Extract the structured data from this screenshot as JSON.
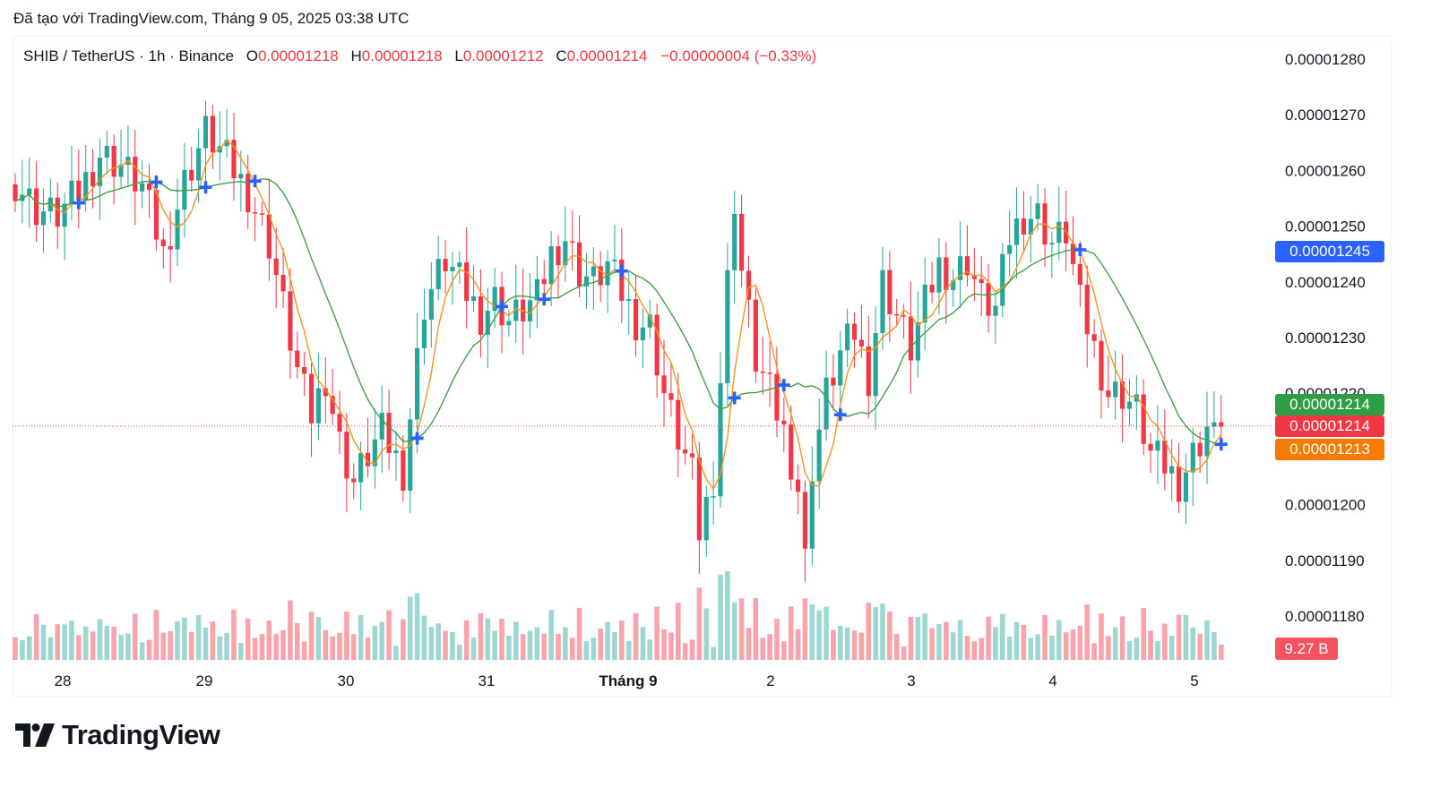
{
  "header": {
    "created_with": "Đã tạo với TradingView.com, Tháng 9 05, 2025 03:38 UTC"
  },
  "legend": {
    "symbol": "SHIB / TetherUS · 1h · Binance",
    "open_label": "O",
    "open": "0.00001218",
    "high_label": "H",
    "high": "0.00001218",
    "low_label": "L",
    "low": "0.00001212",
    "close_label": "C",
    "close": "0.00001214",
    "change": "−0.00000004 (−0.33%)"
  },
  "tags": {
    "ma_blue": "0.00001245",
    "ma_green": "0.00001214",
    "last_price": "0.00001214",
    "ma_orange": "0.00001213",
    "volume": "9.27 B"
  },
  "brand": {
    "name": "TradingView"
  },
  "colors": {
    "up": "#26a69a",
    "down": "#f23645",
    "ma_fast": "#f7931a",
    "ma_slow": "#43a047",
    "marker": "#2962ff",
    "last_price_line": "#f23645"
  },
  "icons": {
    "brand_logo": "tradingview-logo-icon",
    "signal_marker": "plus-icon"
  },
  "chart_data": {
    "type": "candlestick",
    "symbol": "SHIB / TetherUS",
    "interval": "1h",
    "exchange": "Binance",
    "y_ticks": [
      "0.00001280",
      "0.00001270",
      "0.00001260",
      "0.00001250",
      "0.00001240",
      "0.00001230",
      "0.00001220",
      "0.00001210",
      "0.00001200",
      "0.00001190",
      "0.00001180"
    ],
    "x_ticks": [
      "28",
      "29",
      "30",
      "31",
      "Tháng 9",
      "2",
      "3",
      "4",
      "5"
    ],
    "grid": false,
    "last_close": 1.214e-05,
    "anchors_close": [
      [
        0,
        12.58
      ],
      [
        3,
        12.53
      ],
      [
        6,
        12.52
      ],
      [
        9,
        12.56
      ],
      [
        12,
        12.63
      ],
      [
        15,
        12.61
      ],
      [
        18,
        12.57
      ],
      [
        21,
        12.45
      ],
      [
        24,
        12.58
      ],
      [
        27,
        12.67
      ],
      [
        30,
        12.62
      ],
      [
        33,
        12.56
      ],
      [
        36,
        12.47
      ],
      [
        40,
        12.24
      ],
      [
        42,
        12.16
      ],
      [
        44,
        12.23
      ],
      [
        46,
        12.11
      ],
      [
        48,
        12.04
      ],
      [
        50,
        12.09
      ],
      [
        52,
        12.13
      ],
      [
        55,
        12.06
      ],
      [
        58,
        12.36
      ],
      [
        61,
        12.44
      ],
      [
        64,
        12.38
      ],
      [
        66,
        12.34
      ],
      [
        68,
        12.37
      ],
      [
        70,
        12.33
      ],
      [
        72,
        12.35
      ],
      [
        74,
        12.37
      ],
      [
        76,
        12.45
      ],
      [
        78,
        12.48
      ],
      [
        80,
        12.42
      ],
      [
        82,
        12.4
      ],
      [
        84,
        12.43
      ],
      [
        86,
        12.38
      ],
      [
        88,
        12.33
      ],
      [
        90,
        12.32
      ],
      [
        92,
        12.2
      ],
      [
        94,
        12.12
      ],
      [
        96,
        12.05
      ],
      [
        97,
        11.95
      ],
      [
        99,
        12.05
      ],
      [
        101,
        12.4
      ],
      [
        102,
        12.55
      ],
      [
        103,
        12.42
      ],
      [
        105,
        12.26
      ],
      [
        107,
        12.2
      ],
      [
        109,
        12.13
      ],
      [
        111,
        12.03
      ],
      [
        112,
        11.9
      ],
      [
        113,
        12.07
      ],
      [
        115,
        12.2
      ],
      [
        117,
        12.27
      ],
      [
        119,
        12.31
      ],
      [
        121,
        12.23
      ],
      [
        123,
        12.4
      ],
      [
        125,
        12.34
      ],
      [
        127,
        12.28
      ],
      [
        129,
        12.36
      ],
      [
        131,
        12.43
      ],
      [
        133,
        12.41
      ],
      [
        135,
        12.44
      ],
      [
        137,
        12.37
      ],
      [
        139,
        12.35
      ],
      [
        141,
        12.48
      ],
      [
        143,
        12.52
      ],
      [
        145,
        12.52
      ],
      [
        147,
        12.47
      ],
      [
        149,
        12.49
      ],
      [
        151,
        12.36
      ],
      [
        153,
        12.28
      ],
      [
        155,
        12.2
      ],
      [
        157,
        12.2
      ],
      [
        159,
        12.17
      ],
      [
        161,
        12.09
      ],
      [
        163,
        12.07
      ],
      [
        165,
        12.04
      ],
      [
        167,
        12.09
      ],
      [
        169,
        12.14
      ],
      [
        170,
        12.12
      ],
      [
        171,
        12.14
      ]
    ],
    "moving_averages": [
      {
        "color": "#f7931a",
        "last": 1.213e-05
      },
      {
        "color": "#43a047",
        "last": 1.214e-05
      }
    ],
    "ma_values_shown": [
      1.245e-05,
      1.214e-05,
      1.213e-05
    ],
    "volume_last": "9.27 B"
  }
}
